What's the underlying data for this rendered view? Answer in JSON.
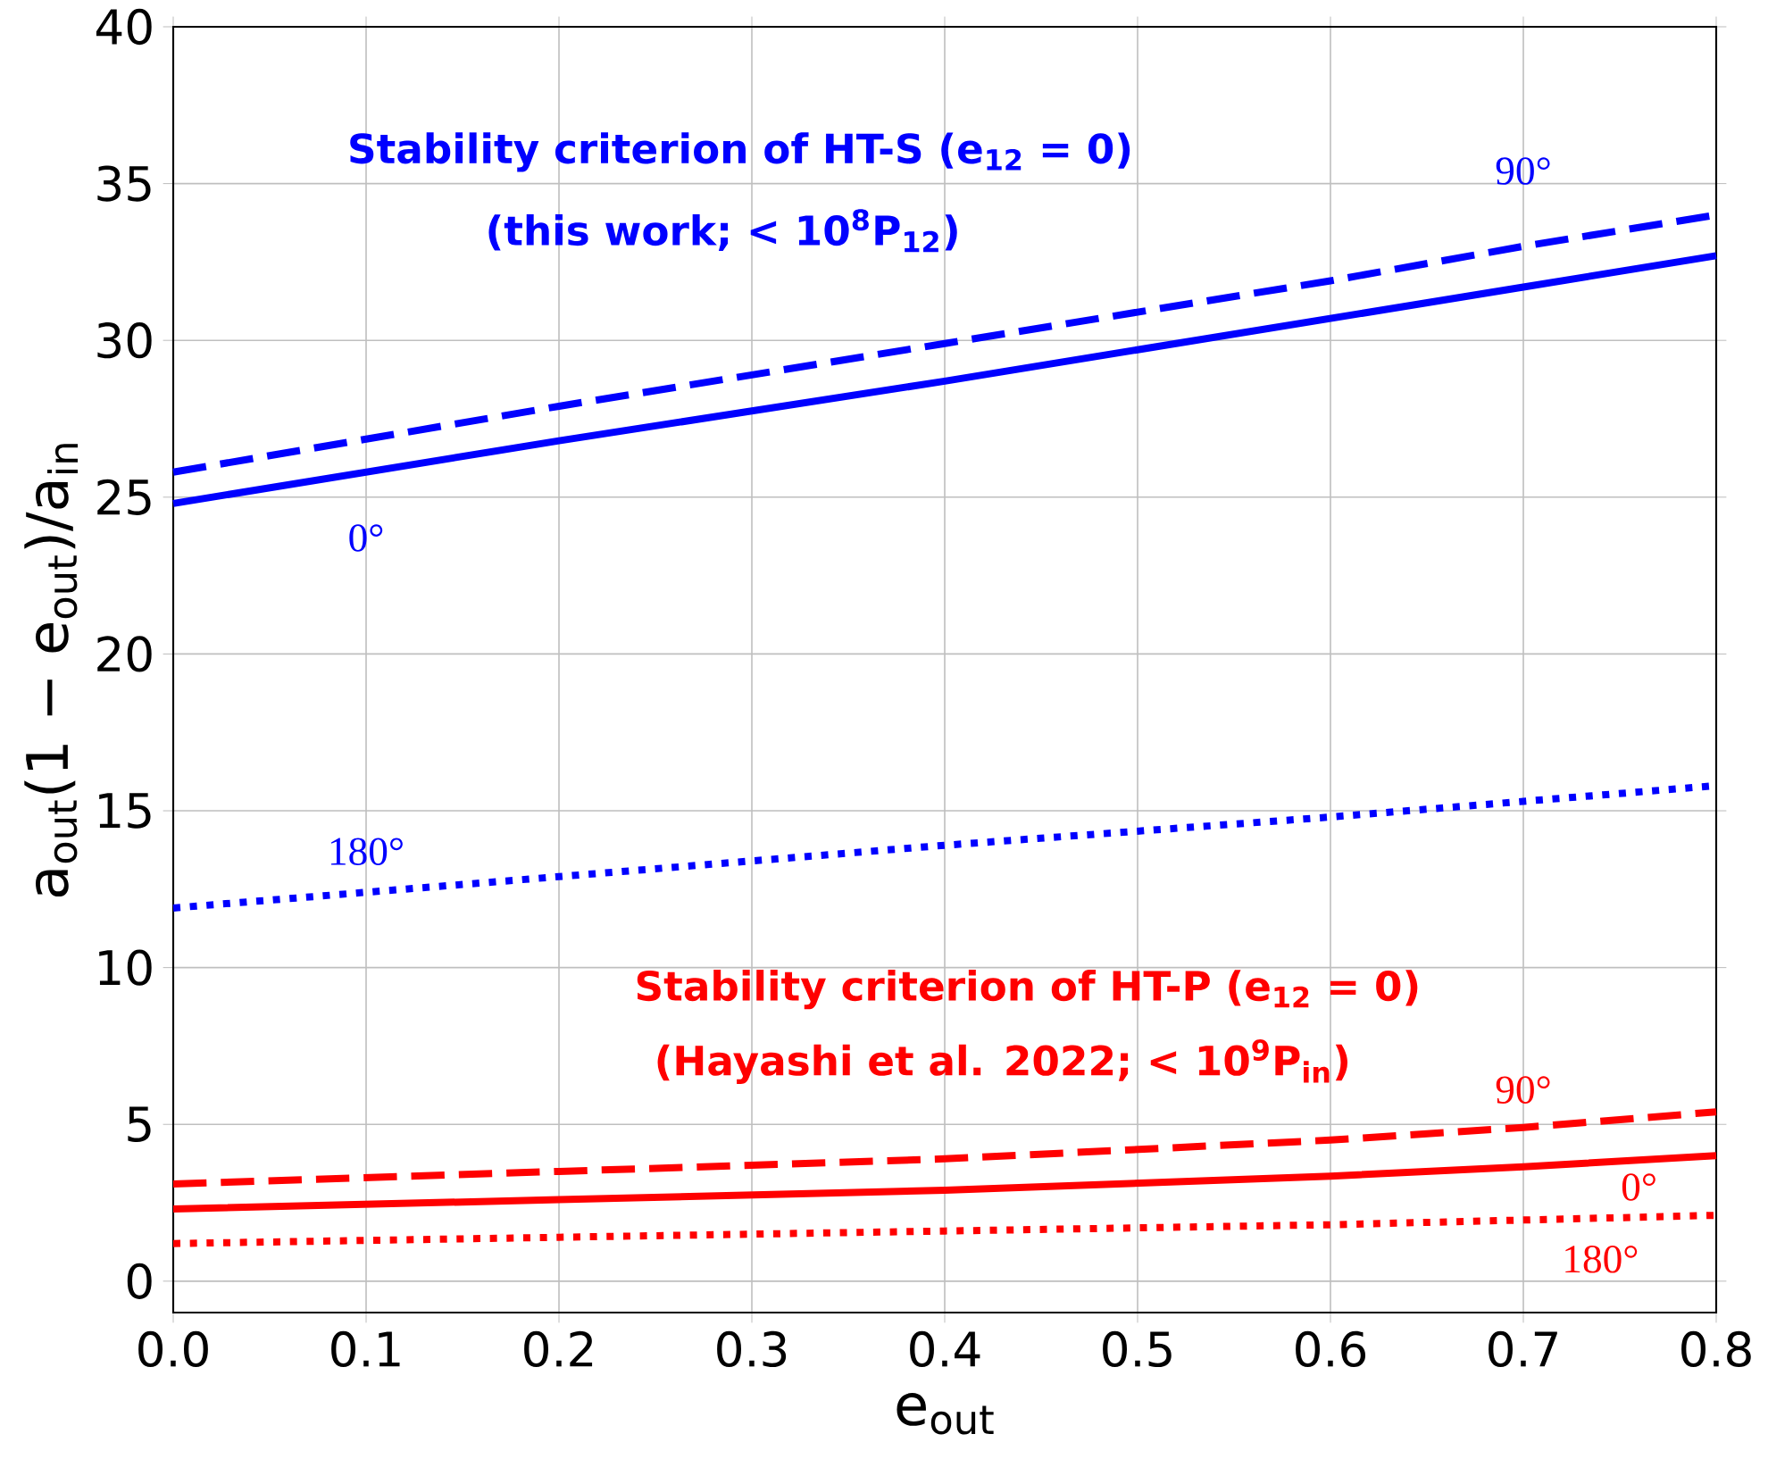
{
  "chart_data": {
    "type": "line",
    "xlabel": "e$_{out}$",
    "ylabel": "a$_{out}$(1 − e$_{out}$)/a$_{in}$",
    "x": [
      0,
      0.2,
      0.4,
      0.6,
      0.7,
      0.8
    ],
    "series": [
      {
        "color": "#0000ff",
        "line_style": "solid",
        "values": [
          24.8,
          26.8,
          28.7,
          30.7,
          31.7,
          32.7
        ]
      },
      {
        "color": "#0000ff",
        "line_style": "dashed",
        "values": [
          25.8,
          27.9,
          29.9,
          31.9,
          33.0,
          34.0
        ]
      },
      {
        "color": "#0000ff",
        "line_style": "dotted",
        "values": [
          11.9,
          12.9,
          13.9,
          14.8,
          15.3,
          15.8
        ]
      },
      {
        "color": "#ff0000",
        "line_style": "solid",
        "values": [
          2.3,
          2.6,
          2.9,
          3.35,
          3.65,
          4.0
        ]
      },
      {
        "color": "#ff0000",
        "line_style": "dashed",
        "values": [
          3.1,
          3.5,
          3.9,
          4.5,
          4.9,
          5.4
        ]
      },
      {
        "color": "#ff0000",
        "line_style": "dotted",
        "values": [
          1.2,
          1.4,
          1.6,
          1.8,
          1.95,
          2.1
        ]
      }
    ],
    "xlim": [
      0,
      0.8
    ],
    "ylim": [
      -1,
      40
    ],
    "xticks": [
      {
        "value": 0,
        "label": "0.0"
      },
      0.1,
      0.2,
      0.3,
      0.4,
      0.5,
      0.6,
      0.7,
      0.8
    ],
    "yticks": [
      0,
      5,
      10,
      15,
      20,
      25,
      30,
      35,
      40
    ],
    "grid": true,
    "annotations": [
      "Stability criterion of HT-S (e$_{12}$ = 0)",
      "(this work; < 10$^{8}$P$_{12}$)",
      "Stability criterion of HT-P (e$_{12}$ = 0)",
      "(Hayashi et al. 2022; < 10$^{9}$P$_{in}$)",
      "90°",
      "0°",
      "180°",
      "90°",
      "0°",
      "180°"
    ]
  }
}
